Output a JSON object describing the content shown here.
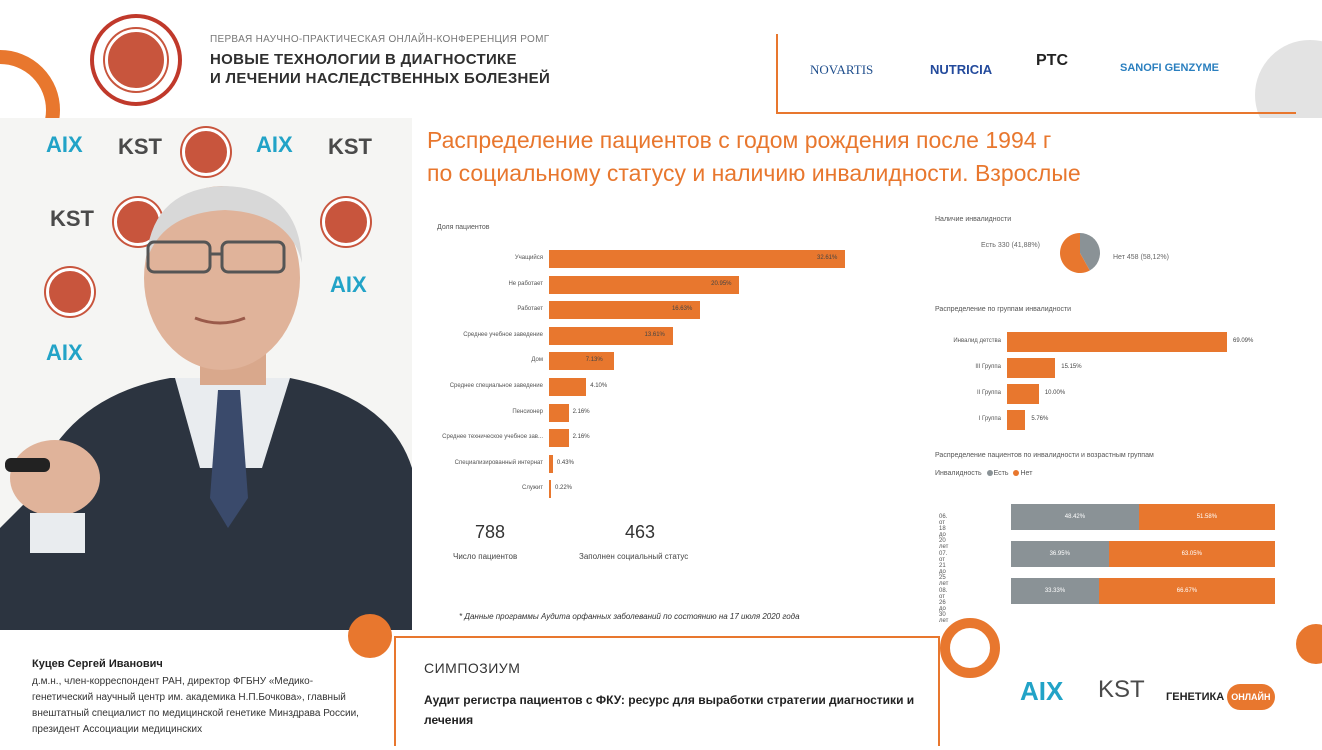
{
  "header": {
    "conference_subtitle": "ПЕРВАЯ НАУЧНО-ПРАКТИЧЕСКАЯ ОНЛАЙН-КОНФЕРЕНЦИЯ РОМГ",
    "conference_title_line1": "НОВЫЕ ТЕХНОЛОГИИ В ДИАГНОСТИКЕ",
    "conference_title_line2": "И ЛЕЧЕНИИ НАСЛЕДСТВЕННЫХ БОЛЕЗНЕЙ",
    "sponsors": [
      "NOVARTIS",
      "NUTRICIA",
      "PTC",
      "SANOFI GENZYME"
    ]
  },
  "backdrop": {
    "aix_text": "AIX",
    "kst_text": "KST"
  },
  "slide": {
    "title_line1": "Распределение пациентов с годом рождения после 1994 г",
    "title_line2": "по социальному статусу и наличию инвалидности. Взрослые",
    "left_panel_label": "Доля пациентов",
    "kpis": [
      {
        "value": "788",
        "label": "Число пациентов"
      },
      {
        "value": "463",
        "label": "Заполнен социальный статус"
      }
    ],
    "footnote": "* Данные программы Аудита орфанных заболеваний по состоянию на 17 июля 2020 года",
    "disability_presence_label": "Наличие инвалидности",
    "pie_yes_label": "Есть 330 (41,88%)",
    "pie_no_label": "Нет 458 (58,12%)",
    "groups_label": "Распределение по группам инвалидности",
    "age_label": "Распределение пациентов по инвалидности и возрастным группам",
    "age_legend_title": "Инвалидность",
    "age_legend_yes": "Есть",
    "age_legend_no": "Нет"
  },
  "chart_data": [
    {
      "type": "bar",
      "title": "Доля пациентов",
      "categories": [
        "Учащийся",
        "Не работает",
        "Работает",
        "Среднее учебное заведение",
        "Дом",
        "Среднее специальное заведение",
        "Пенсионер",
        "Среднее техническое учебное зав...",
        "Специализированный интернат",
        "Служит"
      ],
      "values": [
        32.61,
        20.95,
        16.63,
        13.61,
        7.13,
        4.1,
        2.16,
        2.16,
        0.43,
        0.22
      ],
      "value_labels": [
        "32.61%",
        "20.95%",
        "16.63%",
        "13.61%",
        "7.13%",
        "4.10%",
        "2.16%",
        "2.16%",
        "0.43%",
        "0.22%"
      ],
      "color": "#e8772e"
    },
    {
      "type": "pie",
      "title": "Наличие инвалидности",
      "categories": [
        "Есть",
        "Нет"
      ],
      "values": [
        330,
        458
      ],
      "percent": [
        41.88,
        58.12
      ],
      "colors": [
        "#8a9296",
        "#e8772e"
      ]
    },
    {
      "type": "bar",
      "title": "Распределение по группам инвалидности",
      "categories": [
        "Инвалид детства",
        "III Группа",
        "II Группа",
        "I Группа"
      ],
      "values": [
        69.09,
        15.15,
        10.0,
        5.76
      ],
      "value_labels": [
        "69.09%",
        "15.15%",
        "10.00%",
        "5.76%"
      ],
      "color": "#e8772e"
    },
    {
      "type": "bar",
      "stacked": true,
      "title": "Распределение пациентов по инвалидности и возрастным группам",
      "categories": [
        "06. от 18 до 20 лет",
        "07. от 21 до 25 лет",
        "08. от 26 до 30 лет"
      ],
      "series": [
        {
          "name": "Есть",
          "values": [
            48.42,
            36.95,
            33.33
          ],
          "labels": [
            "48.42%",
            "36.95%",
            "33.33%"
          ],
          "color": "#8a9296"
        },
        {
          "name": "Нет",
          "values": [
            51.58,
            63.05,
            66.67
          ],
          "labels": [
            "51.58%",
            "63.05%",
            "66.67%"
          ],
          "color": "#e8772e"
        }
      ]
    }
  ],
  "footer": {
    "speaker_name": "Куцев Сергей Иванович",
    "speaker_desc": "д.м.н., член-корреспондент РАН, директор ФГБНУ «Медико-генетический научный центр им. академика Н.П.Бочкова», главный внештатный специалист по медицинской генетике Минздрава России, президент Ассоциации медицинских",
    "symposium_label": "СИМПОЗИУМ",
    "symposium_title": "Аудит регистра пациентов с ФКУ: ресурс для выработки стратегии диагностики и лечения",
    "logo_kst": "KST",
    "logo_genetika": "ГЕНЕТИКА",
    "logo_online": "ОНЛАЙН"
  },
  "colors": {
    "accent": "#e8772e",
    "gray_series": "#8a9296",
    "seal_red": "#c8553d"
  }
}
